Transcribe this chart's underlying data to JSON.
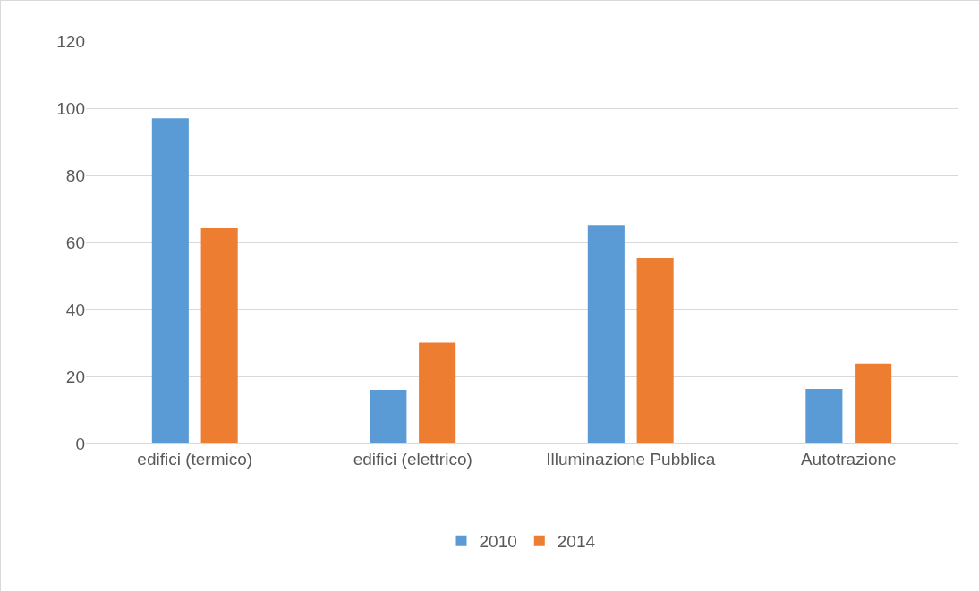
{
  "chart_data": {
    "type": "bar",
    "categories": [
      "edifici (termico)",
      "edifici (elettrico)",
      "Illuminazione Pubblica",
      "Autotrazione"
    ],
    "series": [
      {
        "name": "2010",
        "color": "#5b9bd5",
        "values": [
          97,
          16,
          65,
          16.3
        ]
      },
      {
        "name": "2014",
        "color": "#ed7d31",
        "values": [
          64.3,
          30,
          55.4,
          23.8
        ]
      }
    ],
    "ylim": [
      0,
      120
    ],
    "yticks": [
      0,
      20,
      40,
      60,
      80,
      100,
      120
    ],
    "grid": "y",
    "legend": "bottom"
  }
}
